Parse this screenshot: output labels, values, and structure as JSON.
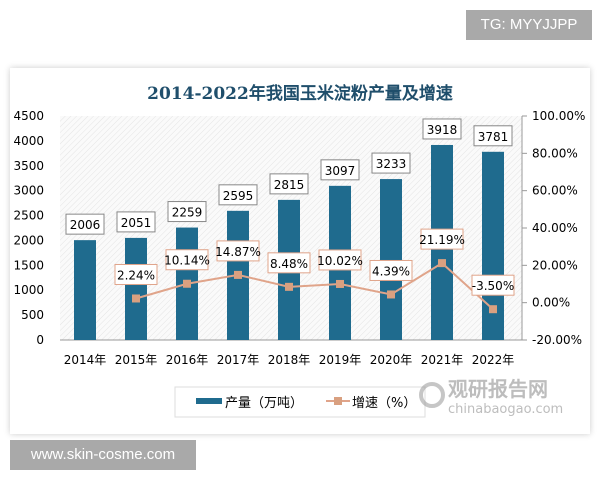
{
  "watermark_top": "TG: MYYJJPP",
  "watermark_bottom": "www.skin-cosme.com",
  "source_logo": {
    "name": "观研报告网",
    "url_text": "chinabaogao.com"
  },
  "chart_data": {
    "type": "bar+line",
    "title": "2014-2022年我国玉米淀粉产量及增速",
    "categories": [
      "2014年",
      "2015年",
      "2016年",
      "2017年",
      "2018年",
      "2019年",
      "2020年",
      "2021年",
      "2022年"
    ],
    "series": [
      {
        "name": "产量（万吨）",
        "type": "bar",
        "axis": "left",
        "color": "#1f6b8e",
        "values": [
          2006,
          2051,
          2259,
          2595,
          2815,
          3097,
          3233,
          3918,
          3781
        ]
      },
      {
        "name": "增速（%）",
        "type": "line",
        "axis": "right",
        "color": "#e0a48a",
        "values": [
          null,
          2.24,
          10.14,
          14.87,
          8.48,
          10.02,
          4.39,
          21.19,
          -3.5
        ],
        "labels": [
          "",
          "2.24%",
          "10.14%",
          "14.87%",
          "8.48%",
          "10.02%",
          "4.39%",
          "21.19%",
          "-3.50%"
        ]
      }
    ],
    "left_axis": {
      "ylim": [
        0,
        4500
      ],
      "ticks": [
        "0",
        "500",
        "1000",
        "1500",
        "2000",
        "2500",
        "3000",
        "3500",
        "4000",
        "4500"
      ]
    },
    "right_axis": {
      "ylim": [
        -20,
        100
      ],
      "ticks": [
        "-20.00%",
        "0.00%",
        "20.00%",
        "40.00%",
        "60.00%",
        "80.00%",
        "100.00%"
      ]
    },
    "legend": "bottom"
  }
}
